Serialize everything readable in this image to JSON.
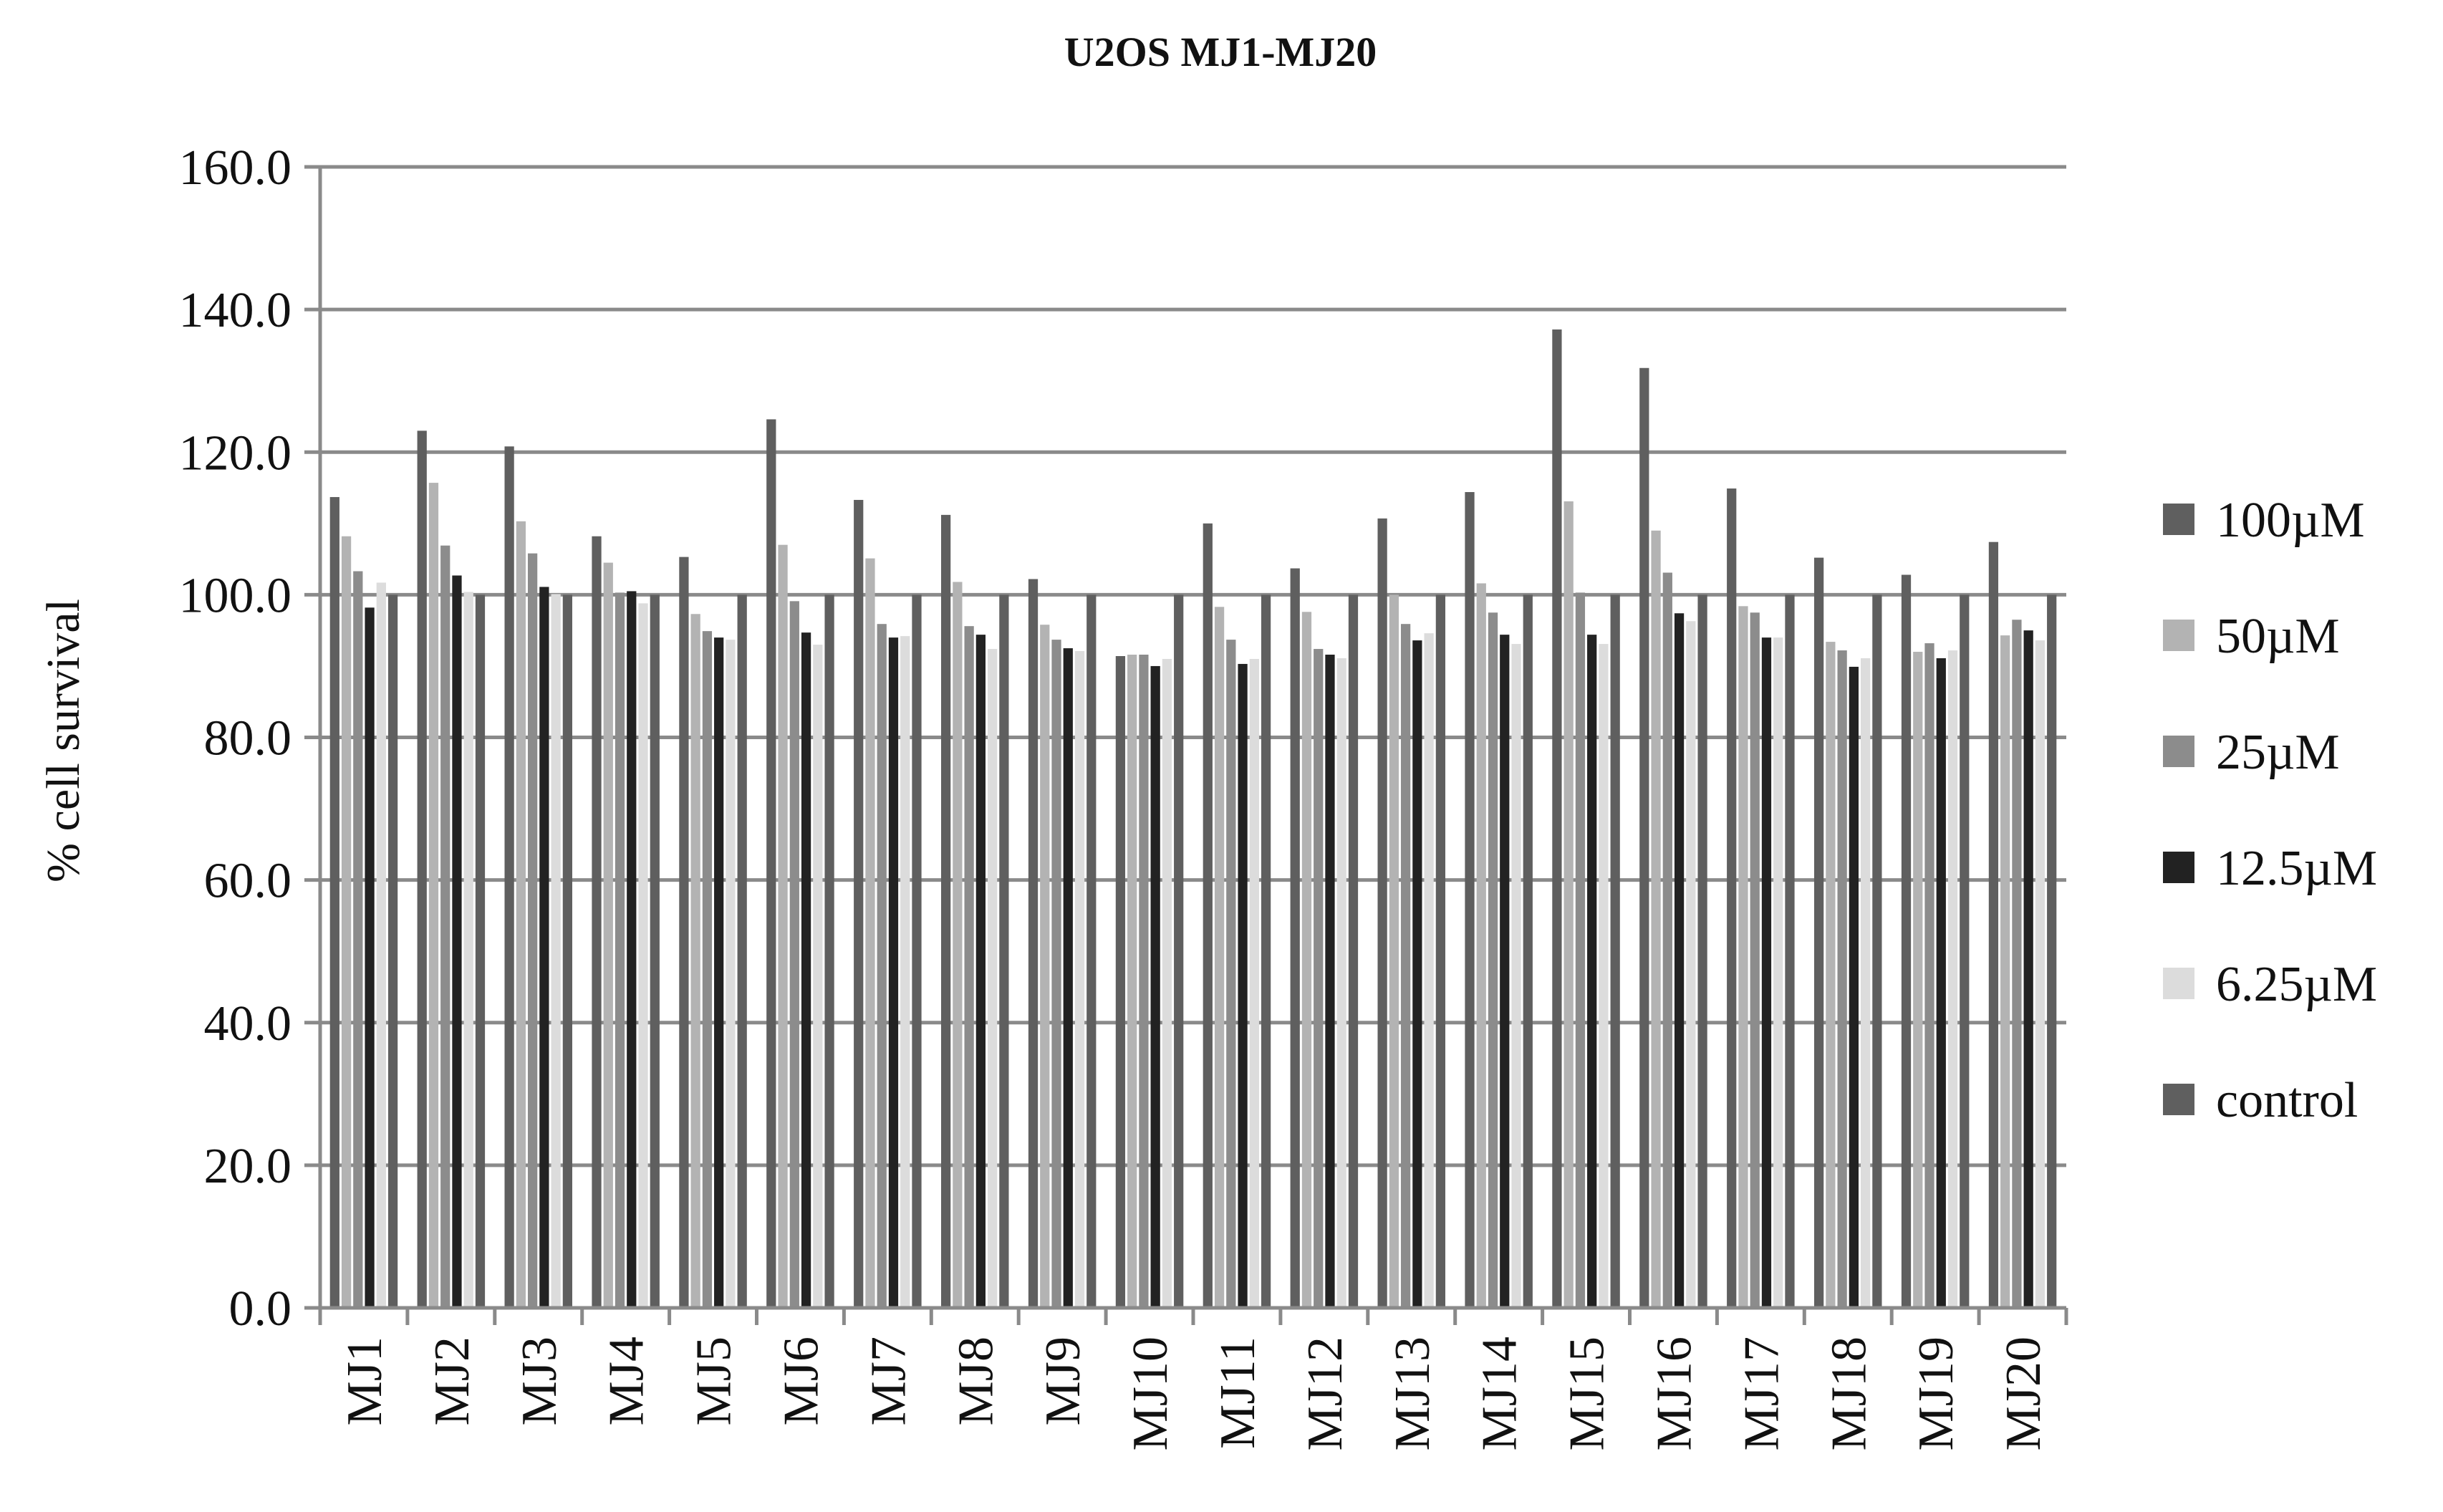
{
  "chart_data": {
    "type": "bar",
    "title": "U2OS MJ1-MJ20",
    "xlabel": "",
    "ylabel": "% cell survival",
    "ylim": [
      0,
      160
    ],
    "yticks": [
      "0.0",
      "20.0",
      "40.0",
      "60.0",
      "80.0",
      "100.0",
      "120.0",
      "140.0",
      "160.0"
    ],
    "grid": true,
    "legend_position": "right",
    "categories": [
      "MJ1",
      "MJ2",
      "MJ3",
      "MJ4",
      "MJ5",
      "MJ6",
      "MJ7",
      "MJ8",
      "MJ9",
      "MJ10",
      "MJ11",
      "MJ12",
      "MJ13",
      "MJ14",
      "MJ15",
      "MJ16",
      "MJ17",
      "MJ18",
      "MJ19",
      "MJ20"
    ],
    "series": [
      {
        "name": "100µM",
        "color": "#5f5f5f",
        "values": [
          113.7,
          123.0,
          120.8,
          108.2,
          105.3,
          124.6,
          113.3,
          111.2,
          102.2,
          91.4,
          110.0,
          103.7,
          110.7,
          114.4,
          137.2,
          131.8,
          114.9,
          105.2,
          102.8,
          107.4
        ]
      },
      {
        "name": "50µM",
        "color": "#b3b3b3",
        "values": [
          108.2,
          115.7,
          110.3,
          104.5,
          97.3,
          107.0,
          105.1,
          101.8,
          95.8,
          91.6,
          98.3,
          97.6,
          100.0,
          101.6,
          113.1,
          109.0,
          98.4,
          93.4,
          92.0,
          94.3
        ]
      },
      {
        "name": "25µM",
        "color": "#8c8c8c",
        "values": [
          103.3,
          106.9,
          105.8,
          100.3,
          94.9,
          99.1,
          95.9,
          95.6,
          93.7,
          91.6,
          93.7,
          92.4,
          95.9,
          97.5,
          100.3,
          103.1,
          97.5,
          92.2,
          93.2,
          96.5
        ]
      },
      {
        "name": "12.5µM",
        "color": "#222222",
        "values": [
          98.2,
          102.7,
          101.1,
          100.5,
          94.0,
          94.7,
          94.0,
          94.4,
          92.5,
          90.0,
          90.3,
          91.6,
          93.6,
          94.4,
          94.4,
          97.4,
          94.0,
          89.9,
          91.1,
          95.0
        ]
      },
      {
        "name": "6.25µM",
        "color": "#dcdcdc",
        "values": [
          101.7,
          100.4,
          100.1,
          98.8,
          93.7,
          93.0,
          94.2,
          92.4,
          92.1,
          91.0,
          91.0,
          91.1,
          94.6,
          93.1,
          93.1,
          96.3,
          94.0,
          91.1,
          92.2,
          93.6
        ]
      },
      {
        "name": "control",
        "color": "#5f5f5f",
        "values": [
          100.0,
          100.0,
          100.0,
          100.0,
          100.0,
          100.0,
          100.0,
          100.0,
          100.0,
          100.0,
          100.0,
          100.0,
          100.0,
          100.0,
          100.0,
          100.0,
          100.0,
          100.0,
          100.0,
          100.0
        ]
      }
    ]
  }
}
